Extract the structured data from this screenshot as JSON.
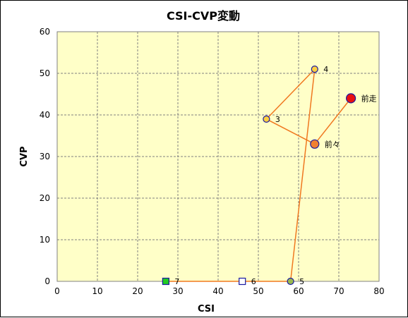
{
  "chart_data": {
    "type": "scatter",
    "title": "CSI-CVP変動",
    "xlabel": "CSI",
    "ylabel": "CVP",
    "xlim": [
      0,
      80
    ],
    "ylim": [
      0,
      60
    ],
    "x_ticks": [
      0,
      10,
      20,
      30,
      40,
      50,
      60,
      70,
      80
    ],
    "y_ticks": [
      0,
      10,
      20,
      30,
      40,
      50,
      60
    ],
    "grid": true,
    "legend": "none",
    "colors": {
      "plot_background": "#ffffc8",
      "grid": "#808080",
      "connector_line": "#f07820",
      "marker_outline": "#1a1aa0",
      "orange_marker": "#f08030",
      "yellow_marker": "#ffd040",
      "olive_marker": "#9aba50",
      "white_marker": "#ffffff",
      "green_marker": "#22cc22",
      "red_marker": "#e81010"
    },
    "points": [
      {
        "label": "前走",
        "x": 73,
        "y": 44,
        "marker": "circle-large",
        "fill": "#e81010"
      },
      {
        "label": "前々",
        "x": 64,
        "y": 33,
        "marker": "circle-medium",
        "fill": "#f08030"
      },
      {
        "label": "3",
        "x": 52,
        "y": 39,
        "marker": "circle-small",
        "fill": "#ffd040"
      },
      {
        "label": "4",
        "x": 64,
        "y": 51,
        "marker": "circle-small",
        "fill": "#ffd040"
      },
      {
        "label": "5",
        "x": 58,
        "y": 0,
        "marker": "circle-small",
        "fill": "#9aba50"
      },
      {
        "label": "6",
        "x": 46,
        "y": 0,
        "marker": "square",
        "fill": "#ffffff"
      },
      {
        "label": "7",
        "x": 27,
        "y": 0,
        "marker": "square",
        "fill": "#22cc22"
      }
    ]
  }
}
